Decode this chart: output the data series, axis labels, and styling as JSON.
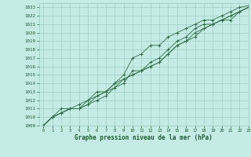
{
  "xlabel": "Graphe pression niveau de la mer (hPa)",
  "bg_color": "#c5ece4",
  "grid_color": "#9ecfc4",
  "line_color": "#2d6b45",
  "text_color": "#1a5c30",
  "xlim": [
    -0.5,
    23
  ],
  "ylim": [
    1009,
    1023.5
  ],
  "yticks": [
    1009,
    1010,
    1011,
    1012,
    1013,
    1014,
    1015,
    1016,
    1017,
    1018,
    1019,
    1020,
    1021,
    1022,
    1023
  ],
  "xticks": [
    0,
    1,
    2,
    3,
    4,
    5,
    6,
    7,
    8,
    9,
    10,
    11,
    12,
    13,
    14,
    15,
    16,
    17,
    18,
    19,
    20,
    21,
    22,
    23
  ],
  "lines": [
    {
      "x": [
        0,
        1,
        2,
        3,
        4,
        5,
        6,
        7,
        8,
        9,
        10,
        11,
        12,
        13,
        14,
        15,
        16,
        17,
        18,
        19,
        20,
        21,
        22,
        23
      ],
      "y": [
        1009,
        1010,
        1011,
        1011,
        1011,
        1012,
        1013,
        1013,
        1014,
        1015,
        1017,
        1017.5,
        1018.5,
        1018.5,
        1019.5,
        1020,
        1020.5,
        1021,
        1021.5,
        1021.5,
        1022,
        1022.5,
        1023,
        1023.2
      ]
    },
    {
      "x": [
        0,
        1,
        2,
        3,
        4,
        5,
        6,
        7,
        8,
        9,
        10,
        11,
        12,
        13,
        14,
        15,
        16,
        17,
        18,
        19,
        20,
        21,
        22,
        23
      ],
      "y": [
        1009,
        1010,
        1010.5,
        1011,
        1011,
        1011.5,
        1012,
        1012.5,
        1013.5,
        1014,
        1015.5,
        1015.5,
        1016.5,
        1017,
        1018,
        1019,
        1019.5,
        1020.5,
        1021,
        1021,
        1021.5,
        1022,
        1022.5,
        1023
      ]
    },
    {
      "x": [
        0,
        1,
        2,
        3,
        4,
        5,
        6,
        7,
        8,
        9,
        10,
        11,
        12,
        13,
        14,
        15,
        16,
        17,
        18,
        19,
        20,
        21,
        22,
        23
      ],
      "y": [
        1009,
        1010,
        1010.5,
        1011,
        1011.5,
        1012,
        1012.5,
        1013,
        1014,
        1014.5,
        1015,
        1015.5,
        1016,
        1016.5,
        1017.5,
        1018.5,
        1019,
        1019.5,
        1020.5,
        1021,
        1021.5,
        1022,
        1022.5,
        1023
      ]
    },
    {
      "x": [
        0,
        1,
        2,
        3,
        4,
        5,
        6,
        7,
        8,
        9,
        10,
        11,
        12,
        13,
        14,
        15,
        16,
        17,
        18,
        19,
        20,
        21,
        22,
        23
      ],
      "y": [
        1009,
        1010,
        1010.5,
        1011,
        1011,
        1011.5,
        1012.5,
        1013,
        1013.5,
        1014.5,
        1015,
        1015.5,
        1016,
        1016.5,
        1017.5,
        1018.5,
        1019,
        1020,
        1020.5,
        1021,
        1021.5,
        1021.5,
        1022.5,
        1023
      ]
    }
  ]
}
